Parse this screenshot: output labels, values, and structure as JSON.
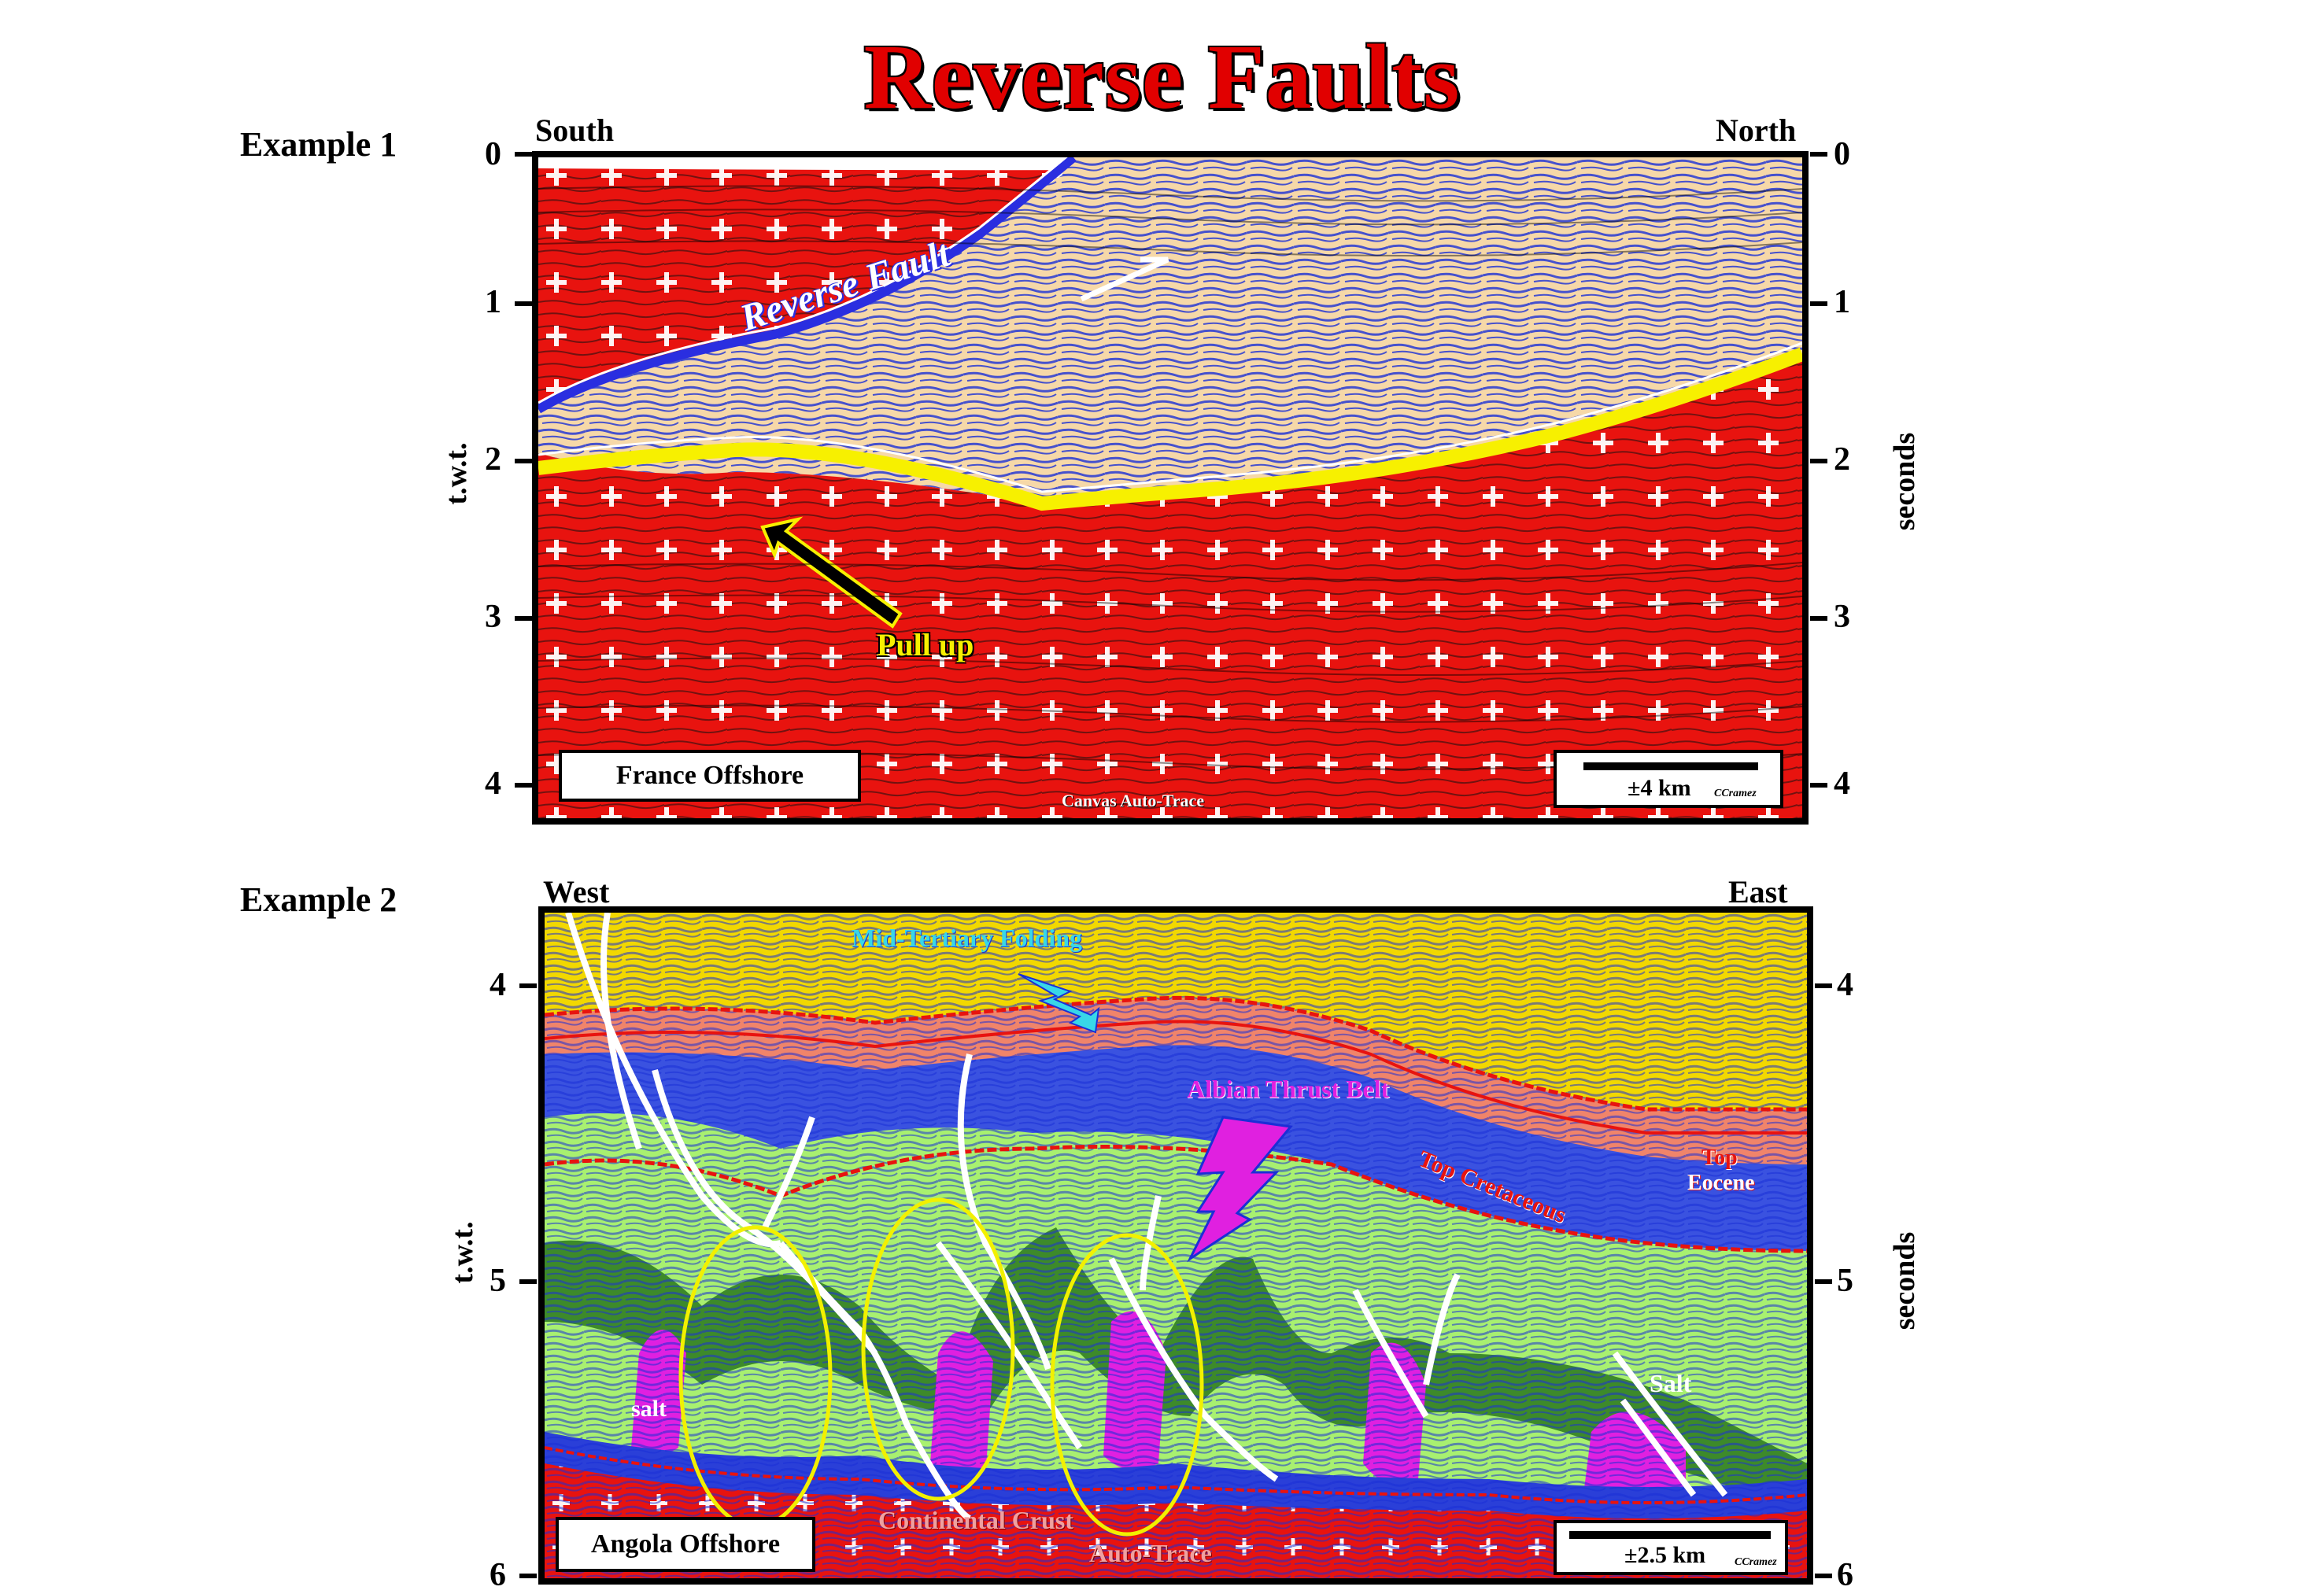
{
  "title": "Reverse Faults",
  "example1": {
    "label": "Example 1",
    "left_direction": "South",
    "right_direction": "North",
    "left_axis_title": "t.w.t.",
    "right_axis_title": "seconds",
    "ticks": [
      "0",
      "1",
      "2",
      "3",
      "4"
    ],
    "location": "France Offshore",
    "scale": "±4 km",
    "credit": "CCramez",
    "fault_label": "Reverse Fault",
    "pullup_label": "Pull up",
    "trace_label": "Canvas Auto-Trace"
  },
  "example2": {
    "label": "Example 2",
    "left_direction": "West",
    "right_direction": "East",
    "left_axis_title": "t.w.t.",
    "right_axis_title": "seconds",
    "ticks": [
      "4",
      "5",
      "6"
    ],
    "location": "Angola Offshore",
    "scale": "±2.5 km",
    "credit": "CCramez",
    "folding_label": "Mid-Tertiary Folding",
    "thrust_label": "Albian Thrust Belt",
    "top_cretaceous": "Top Cretaceous",
    "top_eocene_1": "Top",
    "top_eocene_2": "Eocene",
    "salt_left": "salt",
    "salt_right": "Salt",
    "crust_label": "Continental Crust",
    "trace_label": "Auto-Trace"
  },
  "colors": {
    "basement_red": "#e8130f",
    "sediment_tan": "#f6d8a8",
    "fault_blue": "#2a2ee0",
    "horizon_yellow": "#f7f000",
    "seismic_blue": "#1a2fd6",
    "lime": "#a8f070",
    "dark_green": "#3d8a2a",
    "magenta": "#e020e0",
    "salmon": "#f0846a",
    "yellow_top": "#f2d800",
    "cyan": "#38d7e8"
  }
}
